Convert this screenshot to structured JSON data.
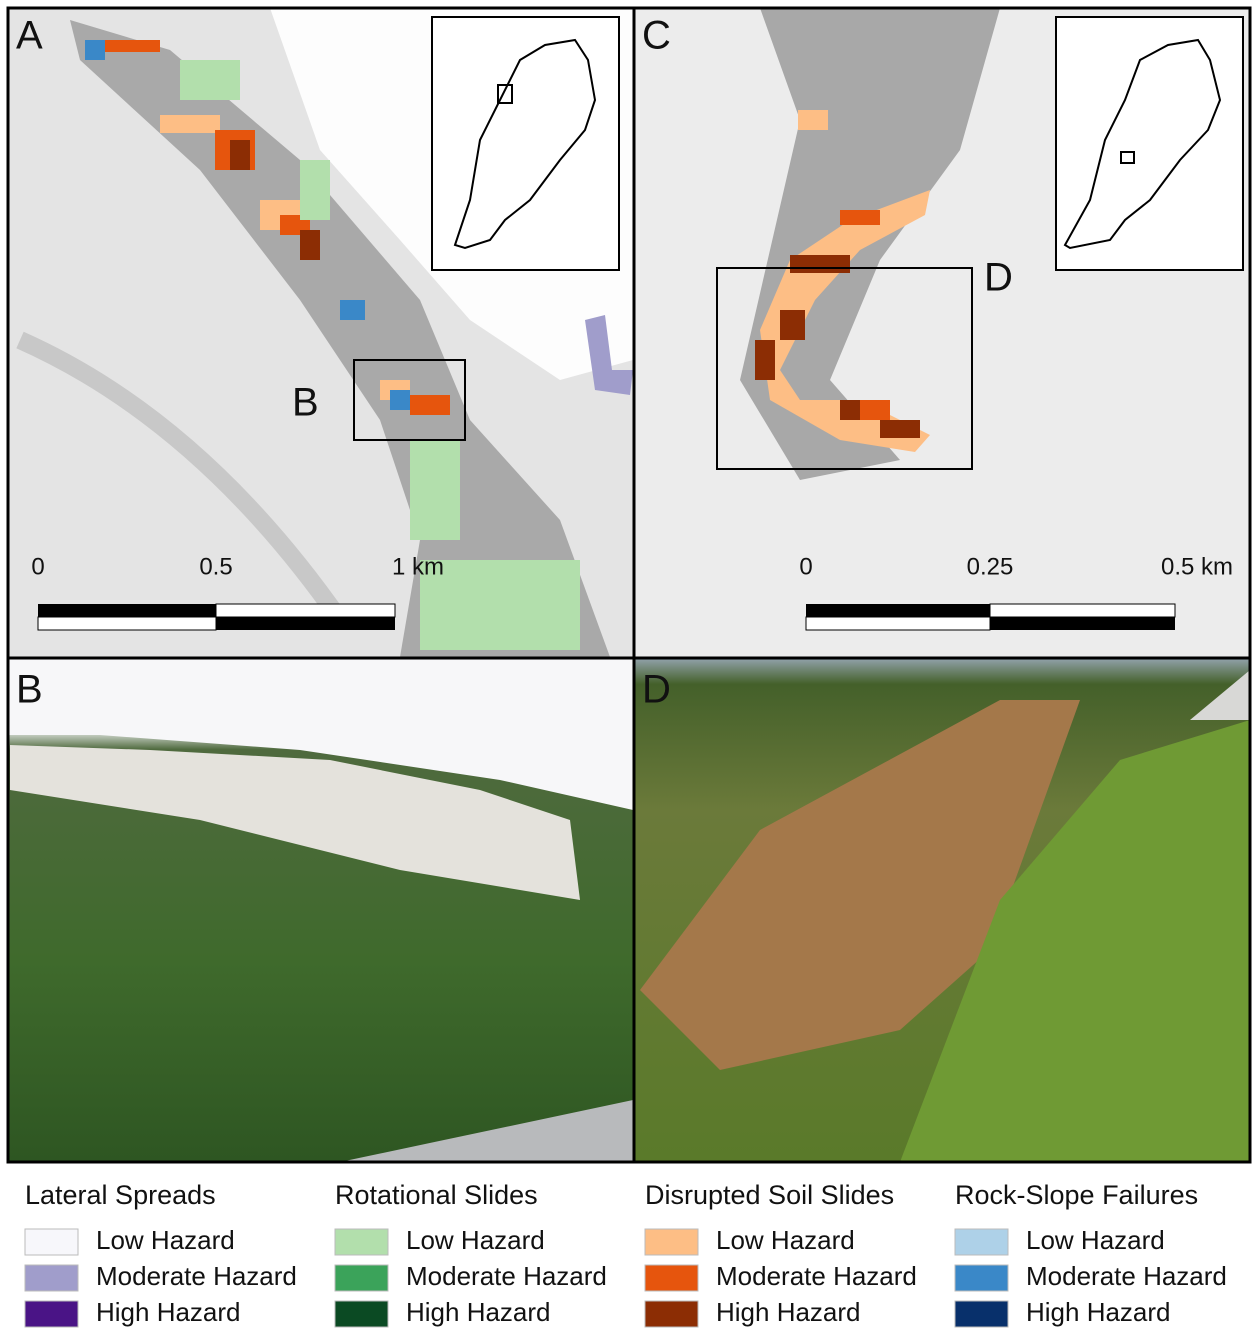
{
  "panels": [
    {
      "label": "A",
      "scale_labels": [
        "0",
        "0.5",
        "1 km"
      ],
      "inset_label": "B"
    },
    {
      "label": "B"
    },
    {
      "label": "C",
      "scale_labels": [
        "0",
        "0.25",
        "0.5 km"
      ],
      "inset_label": "D"
    },
    {
      "label": "D"
    }
  ],
  "legend": [
    {
      "title": "Lateral Spreads",
      "items": [
        {
          "label": "Low Hazard",
          "color": "#f7f7fb"
        },
        {
          "label": "Moderate Hazard",
          "color": "#a09dcb"
        },
        {
          "label": "High Hazard",
          "color": "#4a1486"
        }
      ]
    },
    {
      "title": "Rotational Slides",
      "items": [
        {
          "label": "Low Hazard",
          "color": "#b2dfac"
        },
        {
          "label": "Moderate Hazard",
          "color": "#3ba35a"
        },
        {
          "label": "High Hazard",
          "color": "#0b4a23"
        }
      ]
    },
    {
      "title": "Disrupted Soil Slides",
      "items": [
        {
          "label": "Low Hazard",
          "color": "#fdbe85"
        },
        {
          "label": "Moderate Hazard",
          "color": "#e6550d"
        },
        {
          "label": "High Hazard",
          "color": "#8c2d04"
        }
      ]
    },
    {
      "title": "Rock-Slope Failures",
      "items": [
        {
          "label": "Low Hazard",
          "color": "#aed1e8"
        },
        {
          "label": "Moderate Hazard",
          "color": "#3a88c8"
        },
        {
          "label": "High Hazard",
          "color": "#08306b"
        }
      ]
    }
  ]
}
